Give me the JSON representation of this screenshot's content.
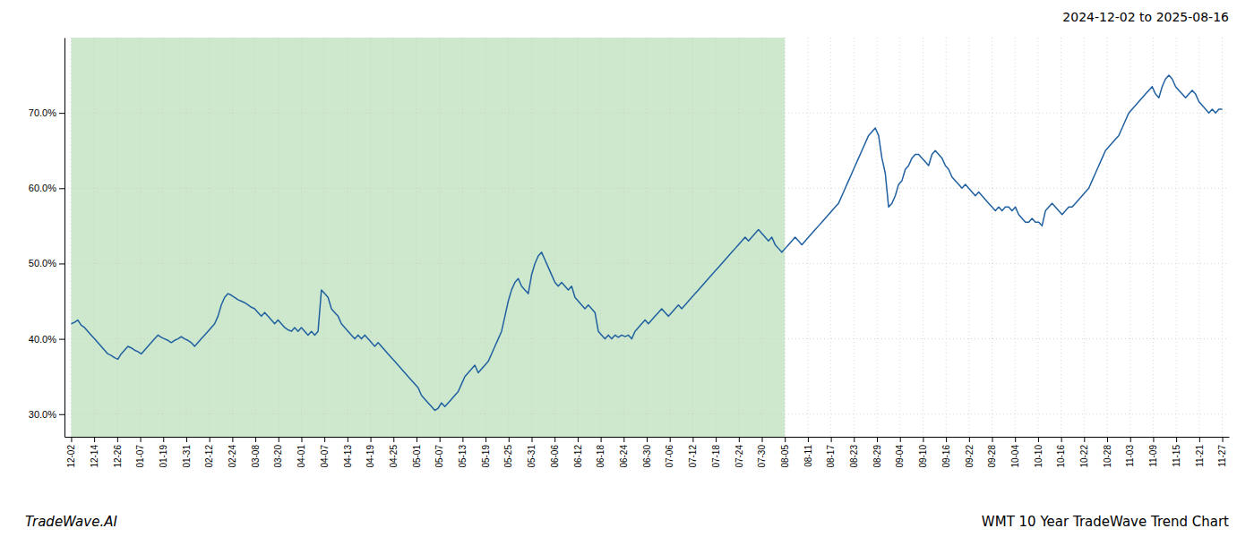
{
  "chart_data": {
    "type": "line",
    "title": "2024-12-02 to 2025-08-16",
    "annotations": [
      "TradeWave.AI",
      "WMT 10 Year TradeWave Trend Chart"
    ],
    "color": "#2060a0",
    "grid": true,
    "shaded_region": {
      "from": 0,
      "to": 213.9,
      "color": "#cde8cd"
    },
    "xlim": [
      -2,
      347
    ],
    "xticks": [
      {
        "value": 0,
        "label": "12-02"
      },
      {
        "value": 6.9,
        "label": "12-14"
      },
      {
        "value": 13.8,
        "label": "12-26"
      },
      {
        "value": 20.7,
        "label": "01-07"
      },
      {
        "value": 27.6,
        "label": "01-19"
      },
      {
        "value": 34.5,
        "label": "01-31"
      },
      {
        "value": 41.4,
        "label": "02-12"
      },
      {
        "value": 48.3,
        "label": "02-24"
      },
      {
        "value": 55.2,
        "label": "03-08"
      },
      {
        "value": 62.1,
        "label": "03-20"
      },
      {
        "value": 69,
        "label": "04-01"
      },
      {
        "value": 75.9,
        "label": "04-07"
      },
      {
        "value": 82.8,
        "label": "04-13"
      },
      {
        "value": 89.7,
        "label": "04-19"
      },
      {
        "value": 96.6,
        "label": "04-25"
      },
      {
        "value": 103.5,
        "label": "05-01"
      },
      {
        "value": 110.4,
        "label": "05-07"
      },
      {
        "value": 117.3,
        "label": "05-13"
      },
      {
        "value": 124.2,
        "label": "05-19"
      },
      {
        "value": 131.1,
        "label": "05-25"
      },
      {
        "value": 138,
        "label": "05-31"
      },
      {
        "value": 144.9,
        "label": "06-06"
      },
      {
        "value": 151.8,
        "label": "06-12"
      },
      {
        "value": 158.7,
        "label": "06-18"
      },
      {
        "value": 165.6,
        "label": "06-24"
      },
      {
        "value": 172.5,
        "label": "06-30"
      },
      {
        "value": 179.4,
        "label": "07-06"
      },
      {
        "value": 186.3,
        "label": "07-12"
      },
      {
        "value": 193.2,
        "label": "07-18"
      },
      {
        "value": 200.1,
        "label": "07-24"
      },
      {
        "value": 207,
        "label": "07-30"
      },
      {
        "value": 213.9,
        "label": "08-05"
      },
      {
        "value": 220.8,
        "label": "08-11"
      },
      {
        "value": 227.7,
        "label": "08-17"
      },
      {
        "value": 234.6,
        "label": "08-23"
      },
      {
        "value": 241.5,
        "label": "08-29"
      },
      {
        "value": 248.4,
        "label": "09-04"
      },
      {
        "value": 255.3,
        "label": "09-10"
      },
      {
        "value": 262.2,
        "label": "09-16"
      },
      {
        "value": 269.1,
        "label": "09-22"
      },
      {
        "value": 276,
        "label": "09-28"
      },
      {
        "value": 282.9,
        "label": "10-04"
      },
      {
        "value": 289.8,
        "label": "10-10"
      },
      {
        "value": 296.7,
        "label": "10-16"
      },
      {
        "value": 303.6,
        "label": "10-22"
      },
      {
        "value": 310.5,
        "label": "10-28"
      },
      {
        "value": 317.4,
        "label": "11-03"
      },
      {
        "value": 324.3,
        "label": "11-09"
      },
      {
        "value": 331.2,
        "label": "11-15"
      },
      {
        "value": 338.1,
        "label": "11-21"
      },
      {
        "value": 345,
        "label": "11-27"
      }
    ],
    "ylim": [
      27.0,
      80.0
    ],
    "yticks": [
      {
        "value": 30.0,
        "label": "30.0%"
      },
      {
        "value": 40.0,
        "label": "40.0%"
      },
      {
        "value": 50.0,
        "label": "50.0%"
      },
      {
        "value": 60.0,
        "label": "60.0%"
      },
      {
        "value": 70.0,
        "label": "70.0%"
      }
    ],
    "values": [
      42.0,
      42.2,
      42.5,
      41.8,
      41.5,
      41.0,
      40.5,
      40.0,
      39.5,
      39.0,
      38.5,
      38.0,
      37.8,
      37.5,
      37.3,
      38.0,
      38.5,
      39.0,
      38.8,
      38.5,
      38.3,
      38.0,
      38.5,
      39.0,
      39.5,
      40.0,
      40.5,
      40.2,
      40.0,
      39.8,
      39.5,
      39.8,
      40.0,
      40.3,
      40.0,
      39.8,
      39.5,
      39.0,
      39.5,
      40.0,
      40.5,
      41.0,
      41.5,
      42.0,
      43.0,
      44.5,
      45.5,
      46.0,
      45.8,
      45.5,
      45.2,
      45.0,
      44.8,
      44.5,
      44.2,
      44.0,
      43.5,
      43.0,
      43.5,
      43.0,
      42.5,
      42.0,
      42.5,
      42.0,
      41.5,
      41.2,
      41.0,
      41.5,
      41.0,
      41.5,
      41.0,
      40.5,
      41.0,
      40.5,
      41.0,
      46.5,
      46.0,
      45.5,
      44.0,
      43.5,
      43.0,
      42.0,
      41.5,
      41.0,
      40.5,
      40.0,
      40.5,
      40.0,
      40.5,
      40.0,
      39.5,
      39.0,
      39.5,
      39.0,
      38.5,
      38.0,
      37.5,
      37.0,
      36.5,
      36.0,
      35.5,
      35.0,
      34.5,
      34.0,
      33.5,
      32.5,
      32.0,
      31.5,
      31.0,
      30.5,
      30.8,
      31.5,
      31.0,
      31.5,
      32.0,
      32.5,
      33.0,
      34.0,
      35.0,
      35.5,
      36.0,
      36.5,
      35.5,
      36.0,
      36.5,
      37.0,
      38.0,
      39.0,
      40.0,
      41.0,
      43.0,
      45.0,
      46.5,
      47.5,
      48.0,
      47.0,
      46.5,
      46.0,
      48.5,
      50.0,
      51.0,
      51.5,
      50.5,
      49.5,
      48.5,
      47.5,
      47.0,
      47.5,
      47.0,
      46.5,
      47.0,
      45.5,
      45.0,
      44.5,
      44.0,
      44.5,
      44.0,
      43.5,
      41.0,
      40.5,
      40.0,
      40.5,
      40.0,
      40.5,
      40.2,
      40.5,
      40.3,
      40.5,
      40.0,
      41.0,
      41.5,
      42.0,
      42.5,
      42.0,
      42.5,
      43.0,
      43.5,
      44.0,
      43.5,
      43.0,
      43.5,
      44.0,
      44.5,
      44.0,
      44.5,
      45.0,
      45.5,
      46.0,
      46.5,
      47.0,
      47.5,
      48.0,
      48.5,
      49.0,
      49.5,
      50.0,
      50.5,
      51.0,
      51.5,
      52.0,
      52.5,
      53.0,
      53.5,
      53.0,
      53.5,
      54.0,
      54.5,
      54.0,
      53.5,
      53.0,
      53.5,
      52.5,
      52.0,
      51.5,
      52.0,
      52.5,
      53.0,
      53.5,
      53.0,
      52.5,
      53.0,
      53.5,
      54.0,
      54.5,
      55.0,
      55.5,
      56.0,
      56.5,
      57.0,
      57.5,
      58.0,
      59.0,
      60.0,
      61.0,
      62.0,
      63.0,
      64.0,
      65.0,
      66.0,
      67.0,
      67.5,
      68.0,
      67.0,
      64.0,
      62.0,
      57.5,
      58.0,
      59.0,
      60.5,
      61.0,
      62.5,
      63.0,
      64.0,
      64.5,
      64.5,
      64.0,
      63.5,
      63.0,
      64.5,
      65.0,
      64.5,
      64.0,
      63.0,
      62.5,
      61.5,
      61.0,
      60.5,
      60.0,
      60.5,
      60.0,
      59.5,
      59.0,
      59.5,
      59.0,
      58.5,
      58.0,
      57.5,
      57.0,
      57.5,
      57.0,
      57.5,
      57.5,
      57.0,
      57.5,
      56.5,
      56.0,
      55.5,
      55.5,
      56.0,
      55.5,
      55.5,
      55.0,
      57.0,
      57.5,
      58.0,
      57.5,
      57.0,
      56.5,
      57.0,
      57.5,
      57.5,
      58.0,
      58.5,
      59.0,
      59.5,
      60.0,
      61.0,
      62.0,
      63.0,
      64.0,
      65.0,
      65.5,
      66.0,
      66.5,
      67.0,
      68.0,
      69.0,
      70.0,
      70.5,
      71.0,
      71.5,
      72.0,
      72.5,
      73.0,
      73.5,
      72.5,
      72.0,
      73.5,
      74.5,
      75.0,
      74.5,
      73.5,
      73.0,
      72.5,
      72.0,
      72.5,
      73.0,
      72.5,
      71.5,
      71.0,
      70.5,
      70.0,
      70.5,
      70.0,
      70.5,
      70.5
    ]
  }
}
